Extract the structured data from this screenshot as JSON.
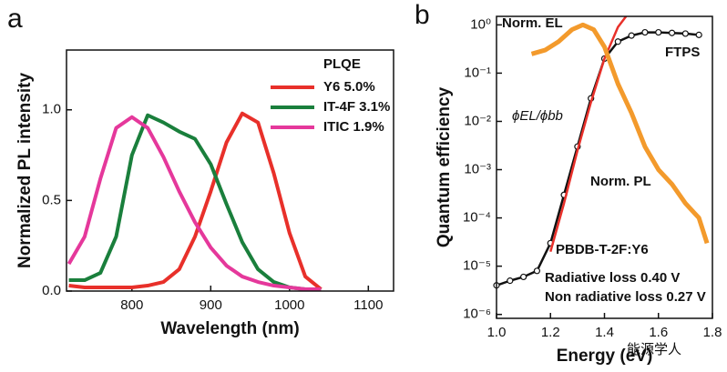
{
  "chart_data": [
    {
      "type": "line",
      "panel": "a",
      "xlabel": "Wavelength (nm)",
      "ylabel": "Normalized PL intensity",
      "xlim": [
        717,
        1132
      ],
      "xticks": [
        800,
        900,
        1000,
        1100
      ],
      "ylim": [
        0,
        1.33
      ],
      "yticks": [
        {
          "value": 0,
          "label": "0.0"
        },
        0.5,
        {
          "value": 1,
          "label": "1.0"
        }
      ],
      "legend_title": "PLQE",
      "legend": "upper right",
      "x": [
        720,
        740,
        760,
        780,
        800,
        820,
        840,
        860,
        880,
        900,
        920,
        940,
        960,
        980,
        1000,
        1020,
        1040
      ],
      "series": [
        {
          "name": "Y6 5.0%",
          "color": "#e8302a",
          "values": [
            0.03,
            0.02,
            0.02,
            0.02,
            0.02,
            0.03,
            0.05,
            0.12,
            0.3,
            0.55,
            0.82,
            0.98,
            0.93,
            0.65,
            0.32,
            0.08,
            0.01
          ]
        },
        {
          "name": "IT-4F 3.1%",
          "color": "#1a7f3c",
          "values": [
            0.06,
            0.06,
            0.1,
            0.3,
            0.75,
            0.97,
            0.93,
            0.88,
            0.84,
            0.7,
            0.48,
            0.27,
            0.12,
            0.05,
            0.02,
            0.01,
            0.01
          ]
        },
        {
          "name": "ITIC 1.9%",
          "color": "#e5389b",
          "values": [
            0.15,
            0.3,
            0.62,
            0.9,
            0.96,
            0.9,
            0.74,
            0.55,
            0.38,
            0.24,
            0.14,
            0.08,
            0.05,
            0.03,
            0.02,
            0.01,
            0.01
          ]
        }
      ]
    },
    {
      "type": "line",
      "panel": "b",
      "log_y": true,
      "xlabel": "Energy (eV)",
      "ylabel": "Quantum efficiency",
      "xlim": [
        1.0,
        1.8
      ],
      "xticks": [
        {
          "value": 1,
          "label": "1.0"
        },
        1.2,
        1.4,
        1.6,
        1.8
      ],
      "ylim": [
        8.3e-07,
        1.5
      ],
      "yticks": [
        {
          "value": 1e-06,
          "label": "10⁻⁶"
        },
        {
          "value": 1e-05,
          "label": "10⁻⁵"
        },
        {
          "value": 0.0001,
          "label": "10⁻⁴"
        },
        {
          "value": 0.001,
          "label": "10⁻³"
        },
        {
          "value": 0.01,
          "label": "10⁻²"
        },
        {
          "value": 0.1,
          "label": "10⁻¹"
        },
        {
          "value": 1,
          "label": "10⁰"
        }
      ],
      "series": [
        {
          "name": "FTPS",
          "color": "#111111",
          "markers": true,
          "x": [
            1.0,
            1.05,
            1.1,
            1.15,
            1.2,
            1.25,
            1.3,
            1.35,
            1.4,
            1.45,
            1.5,
            1.55,
            1.6,
            1.65,
            1.7,
            1.75
          ],
          "values": [
            4e-06,
            5e-06,
            6e-06,
            8e-06,
            3e-05,
            0.0003,
            0.003,
            0.03,
            0.2,
            0.45,
            0.6,
            0.7,
            0.7,
            0.68,
            0.66,
            0.62
          ]
        },
        {
          "name": "ϕEL/ϕbb",
          "color": "#e8302a",
          "x": [
            1.2,
            1.25,
            1.3,
            1.35,
            1.4,
            1.45,
            1.48
          ],
          "values": [
            2e-05,
            0.0002,
            0.0025,
            0.025,
            0.2,
            0.9,
            1.5
          ]
        },
        {
          "name": "Norm. EL",
          "color": "#f39a2c",
          "x": [
            1.13,
            1.18,
            1.23,
            1.28,
            1.32,
            1.36,
            1.4,
            1.45,
            1.5,
            1.55,
            1.6,
            1.65,
            1.7,
            1.75,
            1.78
          ],
          "values": [
            0.25,
            0.3,
            0.45,
            0.8,
            1.0,
            0.8,
            0.35,
            0.06,
            0.015,
            0.003,
            0.001,
            0.0005,
            0.0002,
            0.0001,
            3e-05
          ]
        }
      ],
      "annotations": [
        "Norm. PL",
        "PBDB-T-2F:Y6",
        "Radiative loss 0.40 V",
        "Non radiative loss 0.27 V",
        "能源学人"
      ]
    }
  ]
}
